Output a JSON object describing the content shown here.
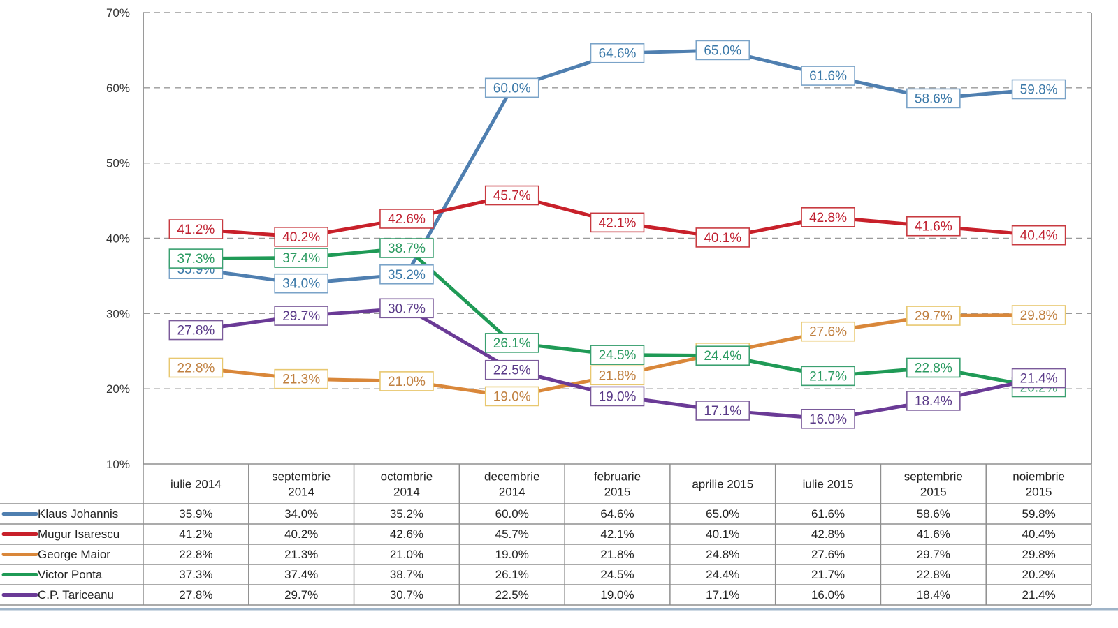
{
  "chart_data": {
    "type": "line",
    "title": "",
    "xlabel": "",
    "ylabel": "",
    "ylim": [
      10,
      70
    ],
    "yticks": [
      10,
      20,
      30,
      40,
      50,
      60,
      70
    ],
    "ytick_labels": [
      "10%",
      "20%",
      "30%",
      "40%",
      "50%",
      "60%",
      "70%"
    ],
    "grid": true,
    "legend_placement": "bottom-left (data table)",
    "value_suffix": "%",
    "categories": [
      [
        "iulie 2014"
      ],
      [
        "septembrie",
        "2014"
      ],
      [
        "octombrie",
        "2014"
      ],
      [
        "decembrie",
        "2014"
      ],
      [
        "februarie",
        "2015"
      ],
      [
        "aprilie 2015"
      ],
      [
        "iulie 2015"
      ],
      [
        "septembrie",
        "2015"
      ],
      [
        "noiembrie",
        "2015"
      ]
    ],
    "series": [
      {
        "name": "Klaus Johannis",
        "color": "#4f7fb0",
        "label_color": "#3a78a8",
        "box_color": "#7aa3c8",
        "values": [
          35.9,
          34.0,
          35.2,
          60.0,
          64.6,
          65.0,
          61.6,
          58.6,
          59.8
        ]
      },
      {
        "name": "Mugur Isarescu",
        "color": "#c8202a",
        "label_color": "#c02030",
        "box_color": "#c83a40",
        "values": [
          41.2,
          40.2,
          42.6,
          45.7,
          42.1,
          40.1,
          42.8,
          41.6,
          40.4
        ]
      },
      {
        "name": "George Maior",
        "color": "#d9873a",
        "label_color": "#c08040",
        "box_color": "#e8c870",
        "values": [
          22.8,
          21.3,
          21.0,
          19.0,
          21.8,
          24.8,
          27.6,
          29.7,
          29.8
        ]
      },
      {
        "name": "Victor Ponta",
        "color": "#1f9a56",
        "label_color": "#2a9a60",
        "box_color": "#3aa070",
        "values": [
          37.3,
          37.4,
          38.7,
          26.1,
          24.5,
          24.4,
          21.7,
          22.8,
          20.2
        ]
      },
      {
        "name": "C.P. Tariceanu",
        "color": "#6a3a96",
        "label_color": "#5a3a88",
        "box_color": "#7a5a9a",
        "values": [
          27.8,
          29.7,
          30.7,
          22.5,
          19.0,
          17.1,
          16.0,
          18.4,
          21.4
        ]
      }
    ]
  }
}
